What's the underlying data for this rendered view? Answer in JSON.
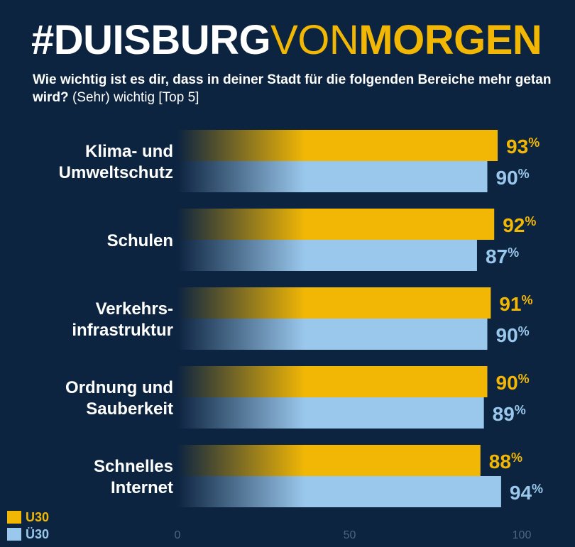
{
  "header": {
    "title_parts": [
      "#DUISBURG",
      "VON",
      "MORGEN"
    ],
    "subtitle_bold": "Wie wichtig ist es dir, dass in deiner Stadt für die folgenden Bereiche mehr getan wird?",
    "subtitle_normal": " (Sehr) wichtig [Top 5]"
  },
  "colors": {
    "background": "#0d2440",
    "u30": "#f2b705",
    "ue30": "#9ac8ec"
  },
  "chart_data": {
    "type": "bar",
    "orientation": "horizontal",
    "categories": [
      [
        "Klima- und",
        "Umweltschutz"
      ],
      [
        "Schulen"
      ],
      [
        "Verkehrs-",
        "infrastruktur"
      ],
      [
        "Ordnung und",
        "Sauberkeit"
      ],
      [
        "Schnelles",
        "Internet"
      ]
    ],
    "series": [
      {
        "name": "U30",
        "values": [
          93,
          92,
          91,
          90,
          88
        ]
      },
      {
        "name": "Ü30",
        "values": [
          90,
          87,
          90,
          89,
          94
        ]
      }
    ],
    "value_suffix": "%",
    "xlim": [
      0,
      100
    ],
    "xticks": [
      "0",
      "50",
      "100"
    ],
    "legend": "bottom-left",
    "grid": false
  }
}
